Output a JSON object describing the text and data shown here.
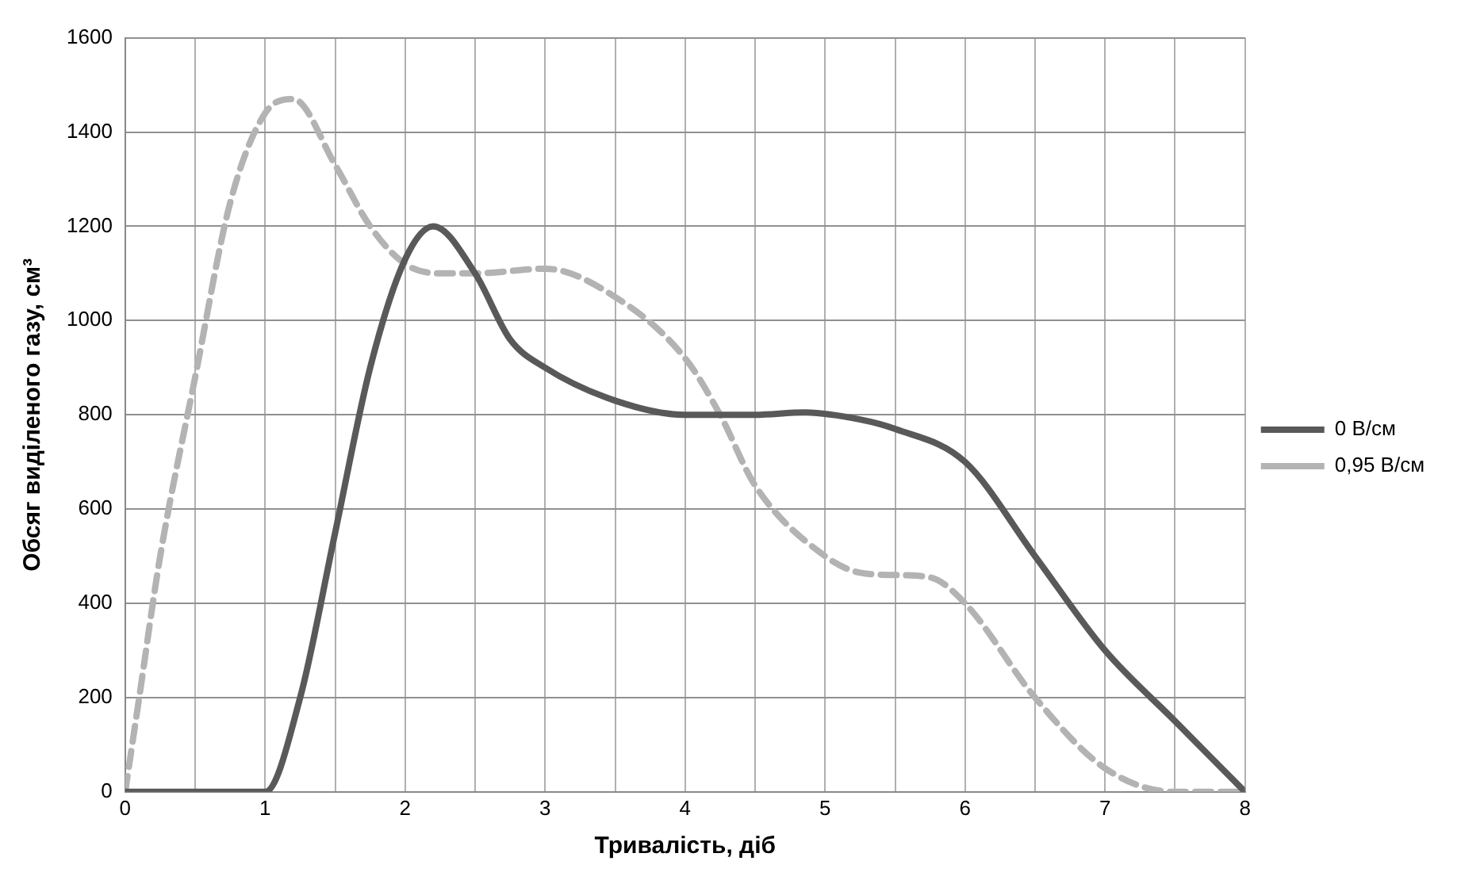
{
  "chart_data": {
    "type": "line",
    "xlabel": "Тривалість, діб",
    "ylabel": "Обсяг виділеного газу, см³",
    "xlim": [
      0,
      8
    ],
    "xticks": [
      0,
      {
        "value": 0.5,
        "label": null
      },
      1,
      {
        "value": 1.5,
        "label": null
      },
      2,
      {
        "value": 2.5,
        "label": null
      },
      3,
      {
        "value": 3.5,
        "label": null
      },
      4,
      {
        "value": 4.5,
        "label": null
      },
      5,
      {
        "value": 5.5,
        "label": null
      },
      6,
      {
        "value": 6.5,
        "label": null
      },
      7,
      {
        "value": 7.5,
        "label": null
      },
      8
    ],
    "ylim": [
      0,
      1600
    ],
    "yticks": [
      0,
      200,
      400,
      600,
      800,
      1000,
      1200,
      1400,
      1600
    ],
    "grid": true,
    "legend": "right",
    "marker": "none",
    "series": [
      {
        "name": "0 В/см",
        "color": "#595959",
        "line_style": "solid",
        "x": [
          0,
          1,
          1.25,
          1.5,
          1.75,
          2,
          2.2,
          2.5,
          2.75,
          3,
          3.5,
          4,
          4.5,
          4.85,
          5.25,
          5.5,
          6,
          6.5,
          7,
          7.5,
          8
        ],
        "values": [
          0,
          0,
          200,
          550,
          900,
          1130,
          1200,
          1100,
          960,
          900,
          830,
          800,
          800,
          805,
          790,
          770,
          700,
          500,
          300,
          150,
          0
        ]
      },
      {
        "name": "0,95 В/см",
        "color": "#b3b3b3",
        "line_style": "dashed",
        "x": [
          0,
          0.1,
          0.25,
          0.5,
          0.75,
          1,
          1.2,
          1.5,
          1.75,
          2,
          2.25,
          2.5,
          3,
          3.5,
          4,
          4.25,
          4.5,
          5,
          5.25,
          5.5,
          5.75,
          6,
          6.5,
          7,
          7.5,
          8
        ],
        "values": [
          0,
          200,
          500,
          880,
          1250,
          1440,
          1470,
          1330,
          1200,
          1120,
          1100,
          1100,
          1110,
          1050,
          920,
          800,
          650,
          500,
          465,
          460,
          455,
          400,
          200,
          50,
          0,
          0
        ]
      }
    ]
  }
}
